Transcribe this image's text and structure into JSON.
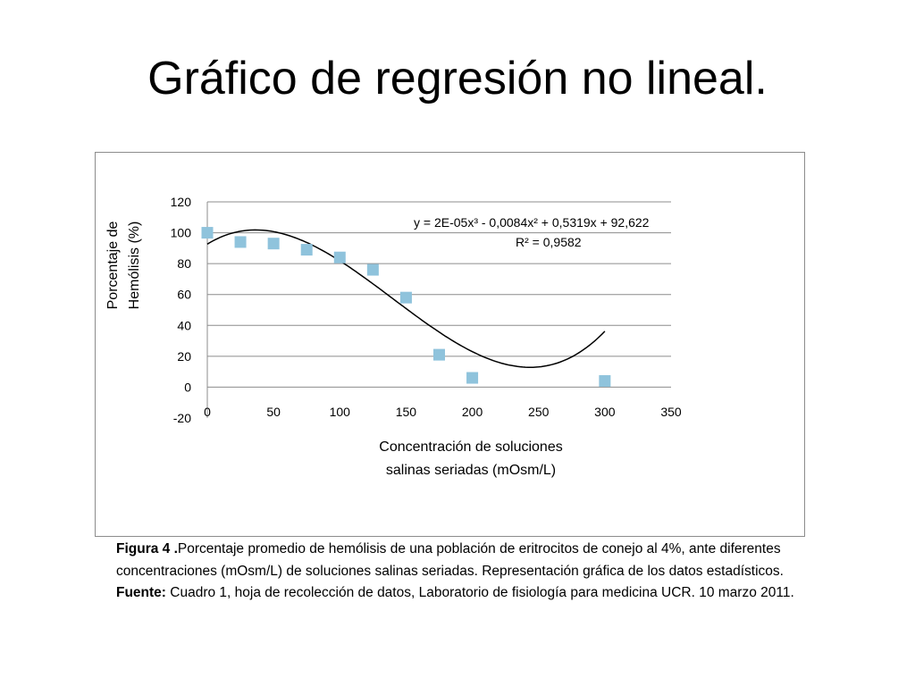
{
  "slide": {
    "title": "Gráfico de regresión no lineal."
  },
  "caption": {
    "figure_label": "Figura 4 .",
    "text": "Porcentaje promedio de hemólisis  de una población de eritrocitos de conejo al 4%, ante diferentes concentraciones (mOsm/L) de soluciones salinas seriadas. Representación gráfica de los datos estadísticos. ",
    "source_label": "Fuente:",
    "source_text": " Cuadro 1, hoja de recolección de datos, Laboratorio de fisiología para medicina UCR. 10 marzo 2011."
  },
  "chart_data": {
    "type": "scatter",
    "title": "",
    "xlabel": [
      "Concentración de soluciones",
      "salinas seriadas (mOsm/L)"
    ],
    "ylabel": [
      "Porcentaje de",
      "Hemólisis (%)"
    ],
    "xlim": [
      0,
      350
    ],
    "ylim": [
      -20,
      120
    ],
    "xticks": [
      0,
      50,
      100,
      150,
      200,
      250,
      300,
      350
    ],
    "yticks": [
      -20,
      0,
      20,
      40,
      60,
      80,
      100,
      120
    ],
    "grid": "horizontal",
    "points": {
      "x": [
        0,
        25,
        50,
        75,
        100,
        125,
        150,
        175,
        200,
        300
      ],
      "y": [
        100,
        94,
        93,
        89,
        84,
        76,
        58,
        21,
        6,
        4
      ]
    },
    "trendline": {
      "type": "polynomial",
      "order": 3,
      "coefficients": [
        2e-05,
        -0.0084,
        0.5319,
        92.622
      ],
      "x_range": [
        0,
        300
      ],
      "equation": "y = 2E-05x³ - 0,0084x² + 0,5319x + 92,622",
      "r_squared": "R² = 0,9582"
    },
    "colors": {
      "marker": "#8fc3dc",
      "trendline": "#000000",
      "grid": "#8c8c8c"
    }
  }
}
